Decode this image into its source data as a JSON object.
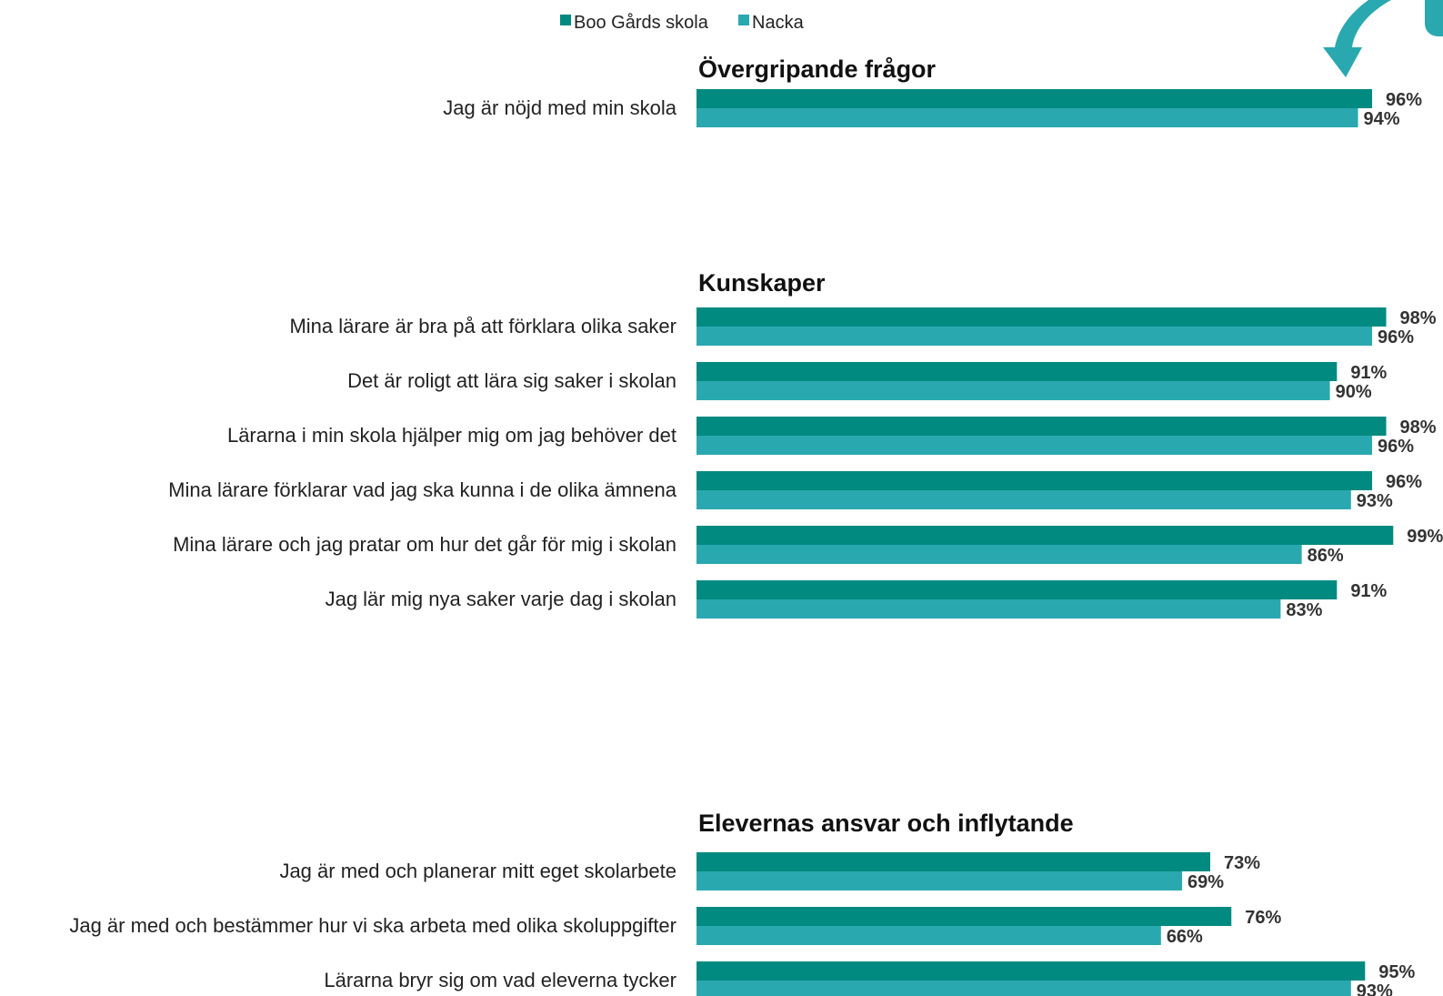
{
  "colors": {
    "school": "#008a80",
    "municipality": "#2aa8b0",
    "arrow": "#2aa8b0"
  },
  "decorations": {
    "top_right_arrow": "arrow-down-icon"
  },
  "chart_data": {
    "type": "bar",
    "orientation": "horizontal",
    "xlim": [
      0,
      100
    ],
    "value_suffix": "%",
    "legend": {
      "position": "top",
      "entries": [
        {
          "name": "Boo Gårds skola",
          "color": "#008a80"
        },
        {
          "name": "Nacka",
          "color": "#2aa8b0"
        }
      ]
    },
    "series": [
      {
        "name": "Boo Gårds skola",
        "color": "#008a80"
      },
      {
        "name": "Nacka",
        "color": "#2aa8b0"
      }
    ],
    "sections": [
      {
        "title": "Övergripande frågor",
        "questions": [
          {
            "label": "Jag är nöjd med min skola",
            "values": [
              96,
              94
            ]
          }
        ]
      },
      {
        "title": "Kunskaper",
        "questions": [
          {
            "label": "Mina lärare är bra på att förklara olika saker",
            "values": [
              98,
              96
            ]
          },
          {
            "label": "Det är roligt att lära sig saker i skolan",
            "values": [
              91,
              90
            ]
          },
          {
            "label": "Lärarna i min skola hjälper mig om jag behöver det",
            "values": [
              98,
              96
            ]
          },
          {
            "label": "Mina lärare förklarar vad jag ska kunna i de olika ämnena",
            "values": [
              96,
              93
            ]
          },
          {
            "label": "Mina lärare och jag pratar om hur det går för mig i skolan",
            "values": [
              99,
              86
            ]
          },
          {
            "label": "Jag lär mig nya saker varje dag i skolan",
            "values": [
              91,
              83
            ]
          }
        ]
      },
      {
        "title": "Elevernas ansvar och inflytande",
        "questions": [
          {
            "label": "Jag är med och planerar mitt eget skolarbete",
            "values": [
              73,
              69
            ]
          },
          {
            "label": "Jag är med och bestämmer hur vi ska arbeta med olika skoluppgifter",
            "values": [
              76,
              66
            ]
          },
          {
            "label": "Lärarna bryr sig om vad eleverna tycker",
            "values": [
              95,
              93
            ]
          }
        ]
      }
    ]
  }
}
